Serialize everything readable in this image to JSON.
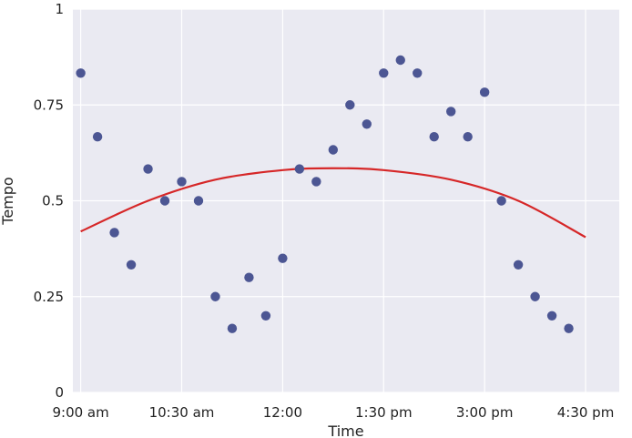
{
  "chart_data": {
    "type": "scatter",
    "title": "",
    "xlabel": "Time",
    "ylabel": "Tempo",
    "x_tick_labels": [
      "9:00 am",
      "10:30 am",
      "12:00",
      "1:30 pm",
      "3:00 pm",
      "4:30 pm"
    ],
    "x_ticks": [
      "9:00",
      "10:30",
      "12:00",
      "13:30",
      "15:00",
      "16:30"
    ],
    "xlim": [
      "8:53",
      "17:00"
    ],
    "y_tick_labels": [
      "0",
      "0.25",
      "0.5",
      "0.75",
      "1"
    ],
    "y_ticks": [
      0,
      0.25,
      0.5,
      0.75,
      1
    ],
    "ylim": [
      0,
      1
    ],
    "grid": true,
    "background": "#eaeaf2",
    "series": [
      {
        "kind": "points",
        "color": "#4c5693",
        "points": [
          {
            "x": "9:00",
            "y": 0.833
          },
          {
            "x": "9:15",
            "y": 0.667
          },
          {
            "x": "9:30",
            "y": 0.417
          },
          {
            "x": "9:45",
            "y": 0.333
          },
          {
            "x": "10:00",
            "y": 0.583
          },
          {
            "x": "10:15",
            "y": 0.5
          },
          {
            "x": "10:30",
            "y": 0.55
          },
          {
            "x": "10:45",
            "y": 0.5
          },
          {
            "x": "11:00",
            "y": 0.25
          },
          {
            "x": "11:15",
            "y": 0.167
          },
          {
            "x": "11:30",
            "y": 0.3
          },
          {
            "x": "11:45",
            "y": 0.2
          },
          {
            "x": "12:00",
            "y": 0.35
          },
          {
            "x": "12:15",
            "y": 0.583
          },
          {
            "x": "12:30",
            "y": 0.55
          },
          {
            "x": "12:45",
            "y": 0.633
          },
          {
            "x": "13:00",
            "y": 0.75
          },
          {
            "x": "13:15",
            "y": 0.7
          },
          {
            "x": "13:30",
            "y": 0.833
          },
          {
            "x": "13:45",
            "y": 0.867
          },
          {
            "x": "14:00",
            "y": 0.833
          },
          {
            "x": "14:15",
            "y": 0.667
          },
          {
            "x": "14:30",
            "y": 0.733
          },
          {
            "x": "14:45",
            "y": 0.667
          },
          {
            "x": "15:00",
            "y": 0.783
          },
          {
            "x": "15:15",
            "y": 0.5
          },
          {
            "x": "15:30",
            "y": 0.333
          },
          {
            "x": "15:45",
            "y": 0.25
          },
          {
            "x": "16:00",
            "y": 0.2
          },
          {
            "x": "16:15",
            "y": 0.167
          }
        ]
      },
      {
        "kind": "fit-curve",
        "color": "#d62728",
        "points": [
          {
            "x": "9:00",
            "y": 0.42
          },
          {
            "x": "10:00",
            "y": 0.5
          },
          {
            "x": "11:00",
            "y": 0.555
          },
          {
            "x": "12:00",
            "y": 0.58
          },
          {
            "x": "12:45",
            "y": 0.585
          },
          {
            "x": "13:30",
            "y": 0.58
          },
          {
            "x": "14:30",
            "y": 0.555
          },
          {
            "x": "15:30",
            "y": 0.5
          },
          {
            "x": "16:30",
            "y": 0.405
          }
        ]
      }
    ]
  }
}
